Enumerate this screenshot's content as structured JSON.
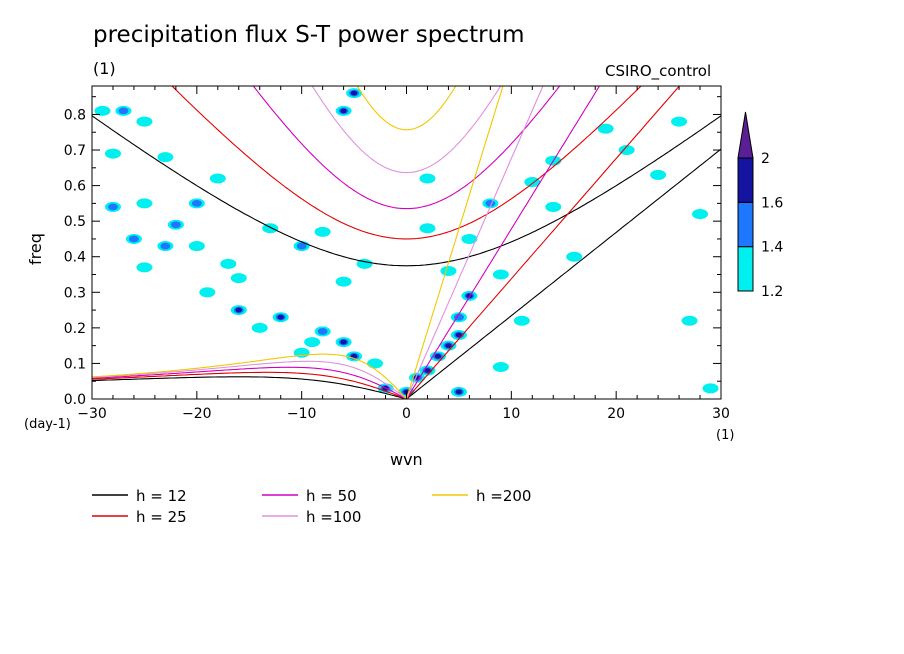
{
  "chart_data": {
    "type": "heatmap",
    "title": "precipitation flux S-T power spectrum",
    "units_label": "(1)",
    "model_label": "CSIRO_control",
    "xlabel": "wvn",
    "ylabel": "freq",
    "x_unit_label": "(1)",
    "y_unit_label": "(day-1)",
    "xlim": [
      -30,
      30
    ],
    "ylim": [
      0,
      0.88
    ],
    "x_ticks": [
      -30,
      -20,
      -10,
      0,
      10,
      20,
      30
    ],
    "y_ticks": [
      0.0,
      0.1,
      0.2,
      0.3,
      0.4,
      0.5,
      0.6,
      0.7,
      0.8
    ],
    "y_tick_labels": [
      "0.0",
      "0.1",
      "0.2",
      "0.3",
      "0.4",
      "0.5",
      "0.6",
      "0.7",
      "0.8"
    ],
    "colorbar": {
      "levels": [
        1.2,
        1.4,
        1.6,
        2
      ],
      "labels": [
        "1.2",
        "1.4",
        "1.6",
        "2"
      ],
      "colors": [
        "#00f0f0",
        "#1e78ff",
        "#1414a0",
        "#5a1e96"
      ]
    },
    "dispersion_curves": [
      {
        "label": "h = 12",
        "h": 12,
        "color": "#000000"
      },
      {
        "label": "h = 25",
        "h": 25,
        "color": "#e00000"
      },
      {
        "label": "h = 50",
        "h": 50,
        "color": "#d000c0"
      },
      {
        "label": "h =100",
        "h": 100,
        "color": "#e090e0"
      },
      {
        "label": "h =200",
        "h": 200,
        "color": "#f0c800"
      }
    ],
    "spectral_blobs": [
      {
        "wvn": -29,
        "freq": 0.81,
        "level": 1.2
      },
      {
        "wvn": -27,
        "freq": 0.81,
        "level": 1.4
      },
      {
        "wvn": -25,
        "freq": 0.78,
        "level": 1.2
      },
      {
        "wvn": -28,
        "freq": 0.69,
        "level": 1.2
      },
      {
        "wvn": -23,
        "freq": 0.68,
        "level": 1.2
      },
      {
        "wvn": -18,
        "freq": 0.62,
        "level": 1.2
      },
      {
        "wvn": -28,
        "freq": 0.54,
        "level": 1.4
      },
      {
        "wvn": -25,
        "freq": 0.55,
        "level": 1.2
      },
      {
        "wvn": -20,
        "freq": 0.55,
        "level": 1.4
      },
      {
        "wvn": -22,
        "freq": 0.49,
        "level": 1.4
      },
      {
        "wvn": -26,
        "freq": 0.45,
        "level": 1.4
      },
      {
        "wvn": -23,
        "freq": 0.43,
        "level": 1.4
      },
      {
        "wvn": -20,
        "freq": 0.43,
        "level": 1.2
      },
      {
        "wvn": -17,
        "freq": 0.38,
        "level": 1.2
      },
      {
        "wvn": -25,
        "freq": 0.37,
        "level": 1.2
      },
      {
        "wvn": -19,
        "freq": 0.3,
        "level": 1.2
      },
      {
        "wvn": -16,
        "freq": 0.34,
        "level": 1.2
      },
      {
        "wvn": -16,
        "freq": 0.25,
        "level": 1.6
      },
      {
        "wvn": -12,
        "freq": 0.23,
        "level": 1.6
      },
      {
        "wvn": -14,
        "freq": 0.2,
        "level": 1.2
      },
      {
        "wvn": -8,
        "freq": 0.19,
        "level": 1.4
      },
      {
        "wvn": -6,
        "freq": 0.16,
        "level": 1.6
      },
      {
        "wvn": -9,
        "freq": 0.16,
        "level": 1.2
      },
      {
        "wvn": -5,
        "freq": 0.12,
        "level": 1.6
      },
      {
        "wvn": -3,
        "freq": 0.1,
        "level": 1.2
      },
      {
        "wvn": -10,
        "freq": 0.13,
        "level": 1.2
      },
      {
        "wvn": -2,
        "freq": 0.03,
        "level": 1.6
      },
      {
        "wvn": 0,
        "freq": 0.02,
        "level": 1.6
      },
      {
        "wvn": -8,
        "freq": 0.47,
        "level": 1.2
      },
      {
        "wvn": -10,
        "freq": 0.43,
        "level": 1.4
      },
      {
        "wvn": -13,
        "freq": 0.48,
        "level": 1.2
      },
      {
        "wvn": -6,
        "freq": 0.81,
        "level": 1.6
      },
      {
        "wvn": -5,
        "freq": 0.86,
        "level": 1.6
      },
      {
        "wvn": -4,
        "freq": 0.38,
        "level": 1.2
      },
      {
        "wvn": -6,
        "freq": 0.33,
        "level": 1.2
      },
      {
        "wvn": 2,
        "freq": 0.48,
        "level": 1.2
      },
      {
        "wvn": 2,
        "freq": 0.62,
        "level": 1.2
      },
      {
        "wvn": 1,
        "freq": 0.06,
        "level": 1.6
      },
      {
        "wvn": 2,
        "freq": 0.08,
        "level": 1.6
      },
      {
        "wvn": 3,
        "freq": 0.12,
        "level": 1.6
      },
      {
        "wvn": 4,
        "freq": 0.15,
        "level": 1.6
      },
      {
        "wvn": 5,
        "freq": 0.18,
        "level": 1.6
      },
      {
        "wvn": 5,
        "freq": 0.23,
        "level": 1.4
      },
      {
        "wvn": 6,
        "freq": 0.29,
        "level": 1.6
      },
      {
        "wvn": 5,
        "freq": 0.02,
        "level": 1.6
      },
      {
        "wvn": 4,
        "freq": 0.36,
        "level": 1.2
      },
      {
        "wvn": 6,
        "freq": 0.45,
        "level": 1.2
      },
      {
        "wvn": 8,
        "freq": 0.55,
        "level": 1.4
      },
      {
        "wvn": 9,
        "freq": 0.35,
        "level": 1.2
      },
      {
        "wvn": 11,
        "freq": 0.22,
        "level": 1.2
      },
      {
        "wvn": 12,
        "freq": 0.61,
        "level": 1.2
      },
      {
        "wvn": 14,
        "freq": 0.67,
        "level": 1.2
      },
      {
        "wvn": 16,
        "freq": 0.4,
        "level": 1.2
      },
      {
        "wvn": 19,
        "freq": 0.76,
        "level": 1.2
      },
      {
        "wvn": 21,
        "freq": 0.7,
        "level": 1.2
      },
      {
        "wvn": 24,
        "freq": 0.63,
        "level": 1.2
      },
      {
        "wvn": 26,
        "freq": 0.78,
        "level": 1.2
      },
      {
        "wvn": 28,
        "freq": 0.52,
        "level": 1.2
      },
      {
        "wvn": 27,
        "freq": 0.22,
        "level": 1.2
      },
      {
        "wvn": 29,
        "freq": 0.03,
        "level": 1.2
      },
      {
        "wvn": 14,
        "freq": 0.54,
        "level": 1.2
      },
      {
        "wvn": 9,
        "freq": 0.09,
        "level": 1.2
      }
    ]
  }
}
